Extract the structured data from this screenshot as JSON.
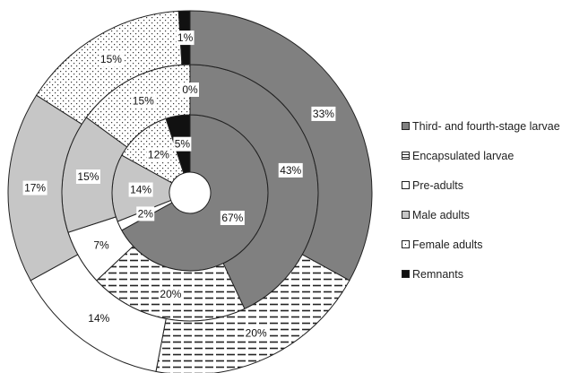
{
  "chart_data": {
    "type": "pie",
    "variant": "multi-level donut",
    "title": "",
    "categories": [
      "Third- and fourth-stage larvae",
      "Encapsulated larvae",
      "Pre-adults",
      "Male adults",
      "Female adults",
      "Remnants"
    ],
    "rings": [
      {
        "level": "inner",
        "values": [
          67,
          0,
          2,
          14,
          12,
          5
        ],
        "labels": [
          "67%",
          "",
          "2%",
          "14%",
          "12%",
          "5%"
        ]
      },
      {
        "level": "middle",
        "values": [
          43,
          20,
          7,
          15,
          15,
          0
        ],
        "labels": [
          "43%",
          "20%",
          "7%",
          "15%",
          "15%",
          "0%"
        ]
      },
      {
        "level": "outer",
        "values": [
          33,
          20,
          14,
          17,
          15,
          1
        ],
        "labels": [
          "33%",
          "20%",
          "14%",
          "17%",
          "15%",
          "1%"
        ]
      }
    ],
    "legend_position": "right",
    "colors": {
      "third_fourth_stage": "#808080",
      "encapsulated": "#ffffff",
      "pre_adults": "#ffffff",
      "male_adults": "#c6c6c6",
      "female_adults": "#ffffff",
      "remnants": "#111111",
      "pattern_ink": "#222222"
    }
  },
  "legend": [
    {
      "label": "Third- and fourth-stage larvae"
    },
    {
      "label": "Encapsulated larvae"
    },
    {
      "label": "Pre-adults"
    },
    {
      "label": "Male adults"
    },
    {
      "label": "Female adults"
    },
    {
      "label": "Remnants"
    }
  ]
}
